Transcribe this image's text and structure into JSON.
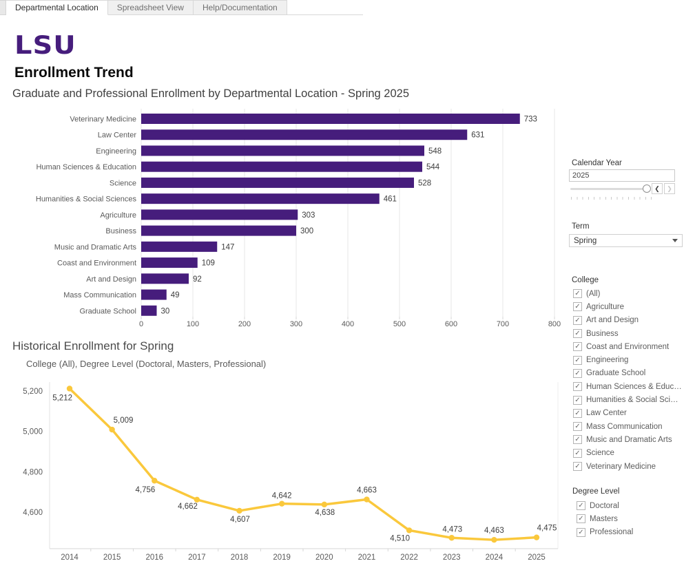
{
  "tabs": {
    "items": [
      {
        "label": "Departmental Location",
        "active": true
      },
      {
        "label": "Spreadsheet View",
        "active": false
      },
      {
        "label": "Help/Documentation",
        "active": false
      }
    ]
  },
  "header": {
    "logo_text": "LSU",
    "title": "Enrollment Trend",
    "subtitle": "Graduate and Professional Enrollment by Departmental Location - Spring 2025"
  },
  "colors": {
    "lsu_purple": "#461d7c",
    "lsu_gold": "#fac83c",
    "grid": "#e7e7e7",
    "axis": "#d6d6d6",
    "tick_label": "#5a5a5a",
    "value_label": "#3d3d3d"
  },
  "chart_data": [
    {
      "type": "bar",
      "orientation": "horizontal",
      "title": "Graduate and Professional Enrollment by Departmental Location - Spring 2025",
      "categories": [
        "Veterinary Medicine",
        "Law Center",
        "Engineering",
        "Human Sciences & Education",
        "Science",
        "Humanities & Social Sciences",
        "Agriculture",
        "Business",
        "Music and Dramatic Arts",
        "Coast and Environment",
        "Art and Design",
        "Mass Communication",
        "Graduate School"
      ],
      "values": [
        733,
        631,
        548,
        544,
        528,
        461,
        303,
        300,
        147,
        109,
        92,
        49,
        30
      ],
      "xlim": [
        0,
        800
      ],
      "x_ticks": [
        0,
        100,
        200,
        300,
        400,
        500,
        600,
        700,
        800
      ],
      "bar_color": "#461d7c",
      "grid": true,
      "value_labels": true
    },
    {
      "type": "line",
      "title": "Historical Enrollment for Spring",
      "subtitle": "College (All), Degree Level (Doctoral, Masters, Professional)",
      "x": [
        2014,
        2015,
        2016,
        2017,
        2018,
        2019,
        2020,
        2021,
        2022,
        2023,
        2024,
        2025
      ],
      "values": [
        5212,
        5009,
        4756,
        4662,
        4607,
        4642,
        4638,
        4663,
        4510,
        4473,
        4463,
        4475
      ],
      "y_ticks": [
        4600,
        4800,
        5000,
        5200
      ],
      "ylim": [
        4420,
        5260
      ],
      "line_color": "#fac83c",
      "point_labels": true,
      "label_offsets": [
        [
          4,
          17,
          "end"
        ],
        [
          2,
          -10,
          "start"
        ],
        [
          1,
          17,
          "end"
        ],
        [
          1,
          13,
          "end"
        ],
        [
          1,
          16,
          "middle"
        ],
        [
          0,
          -8,
          "middle"
        ],
        [
          1,
          15,
          "middle"
        ],
        [
          0,
          -10,
          "middle"
        ],
        [
          1,
          15,
          "end"
        ],
        [
          1,
          -9,
          "middle"
        ],
        [
          0,
          -10,
          "middle"
        ],
        [
          15,
          -10,
          "middle"
        ]
      ]
    }
  ],
  "filters": {
    "calendar_year": {
      "label": "Calendar Year",
      "value": "2025"
    },
    "term": {
      "label": "Term",
      "value": "Spring"
    },
    "college": {
      "label": "College",
      "items": [
        {
          "label": "(All)",
          "checked": true
        },
        {
          "label": "Agriculture",
          "checked": true
        },
        {
          "label": "Art and Design",
          "checked": true
        },
        {
          "label": "Business",
          "checked": true
        },
        {
          "label": "Coast and Environment",
          "checked": true
        },
        {
          "label": "Engineering",
          "checked": true
        },
        {
          "label": "Graduate School",
          "checked": true
        },
        {
          "label": "Human Sciences & Educ…",
          "checked": true
        },
        {
          "label": "Humanities & Social Sci…",
          "checked": true
        },
        {
          "label": "Law Center",
          "checked": true
        },
        {
          "label": "Mass Communication",
          "checked": true
        },
        {
          "label": "Music and Dramatic Arts",
          "checked": true
        },
        {
          "label": "Science",
          "checked": true
        },
        {
          "label": "Veterinary Medicine",
          "checked": true
        }
      ]
    },
    "degree_level": {
      "label": "Degree Level",
      "items": [
        {
          "label": "Doctoral",
          "checked": true
        },
        {
          "label": "Masters",
          "checked": true
        },
        {
          "label": "Professional",
          "checked": true
        }
      ]
    }
  }
}
